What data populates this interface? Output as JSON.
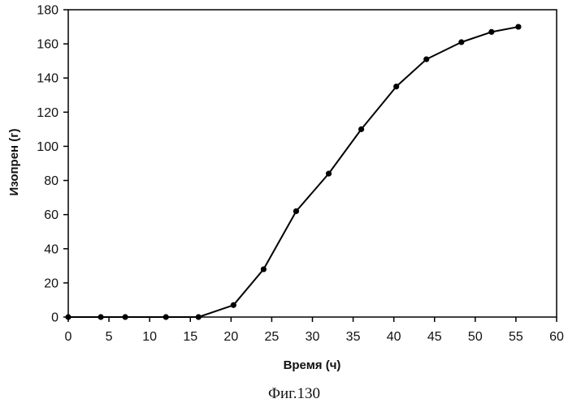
{
  "chart_data": {
    "type": "line",
    "xlabel": "Время (ч)",
    "ylabel": "Изопрен (г)",
    "xlim": [
      0,
      60
    ],
    "ylim": [
      0,
      180
    ],
    "xticks": [
      0,
      5,
      10,
      15,
      20,
      25,
      30,
      35,
      40,
      45,
      50,
      55,
      60
    ],
    "yticks": [
      0,
      20,
      40,
      60,
      80,
      100,
      120,
      140,
      160,
      180
    ],
    "grid": false,
    "series": [
      {
        "x": [
          0,
          4,
          7,
          12,
          16,
          20.3,
          24,
          28,
          32,
          36,
          40.3,
          44,
          48.3,
          52,
          55.3
        ],
        "y": [
          0,
          0,
          0,
          0,
          0,
          7,
          28,
          62,
          84,
          110,
          135,
          151,
          161,
          167,
          170
        ]
      }
    ]
  },
  "caption": "Фиг.130"
}
